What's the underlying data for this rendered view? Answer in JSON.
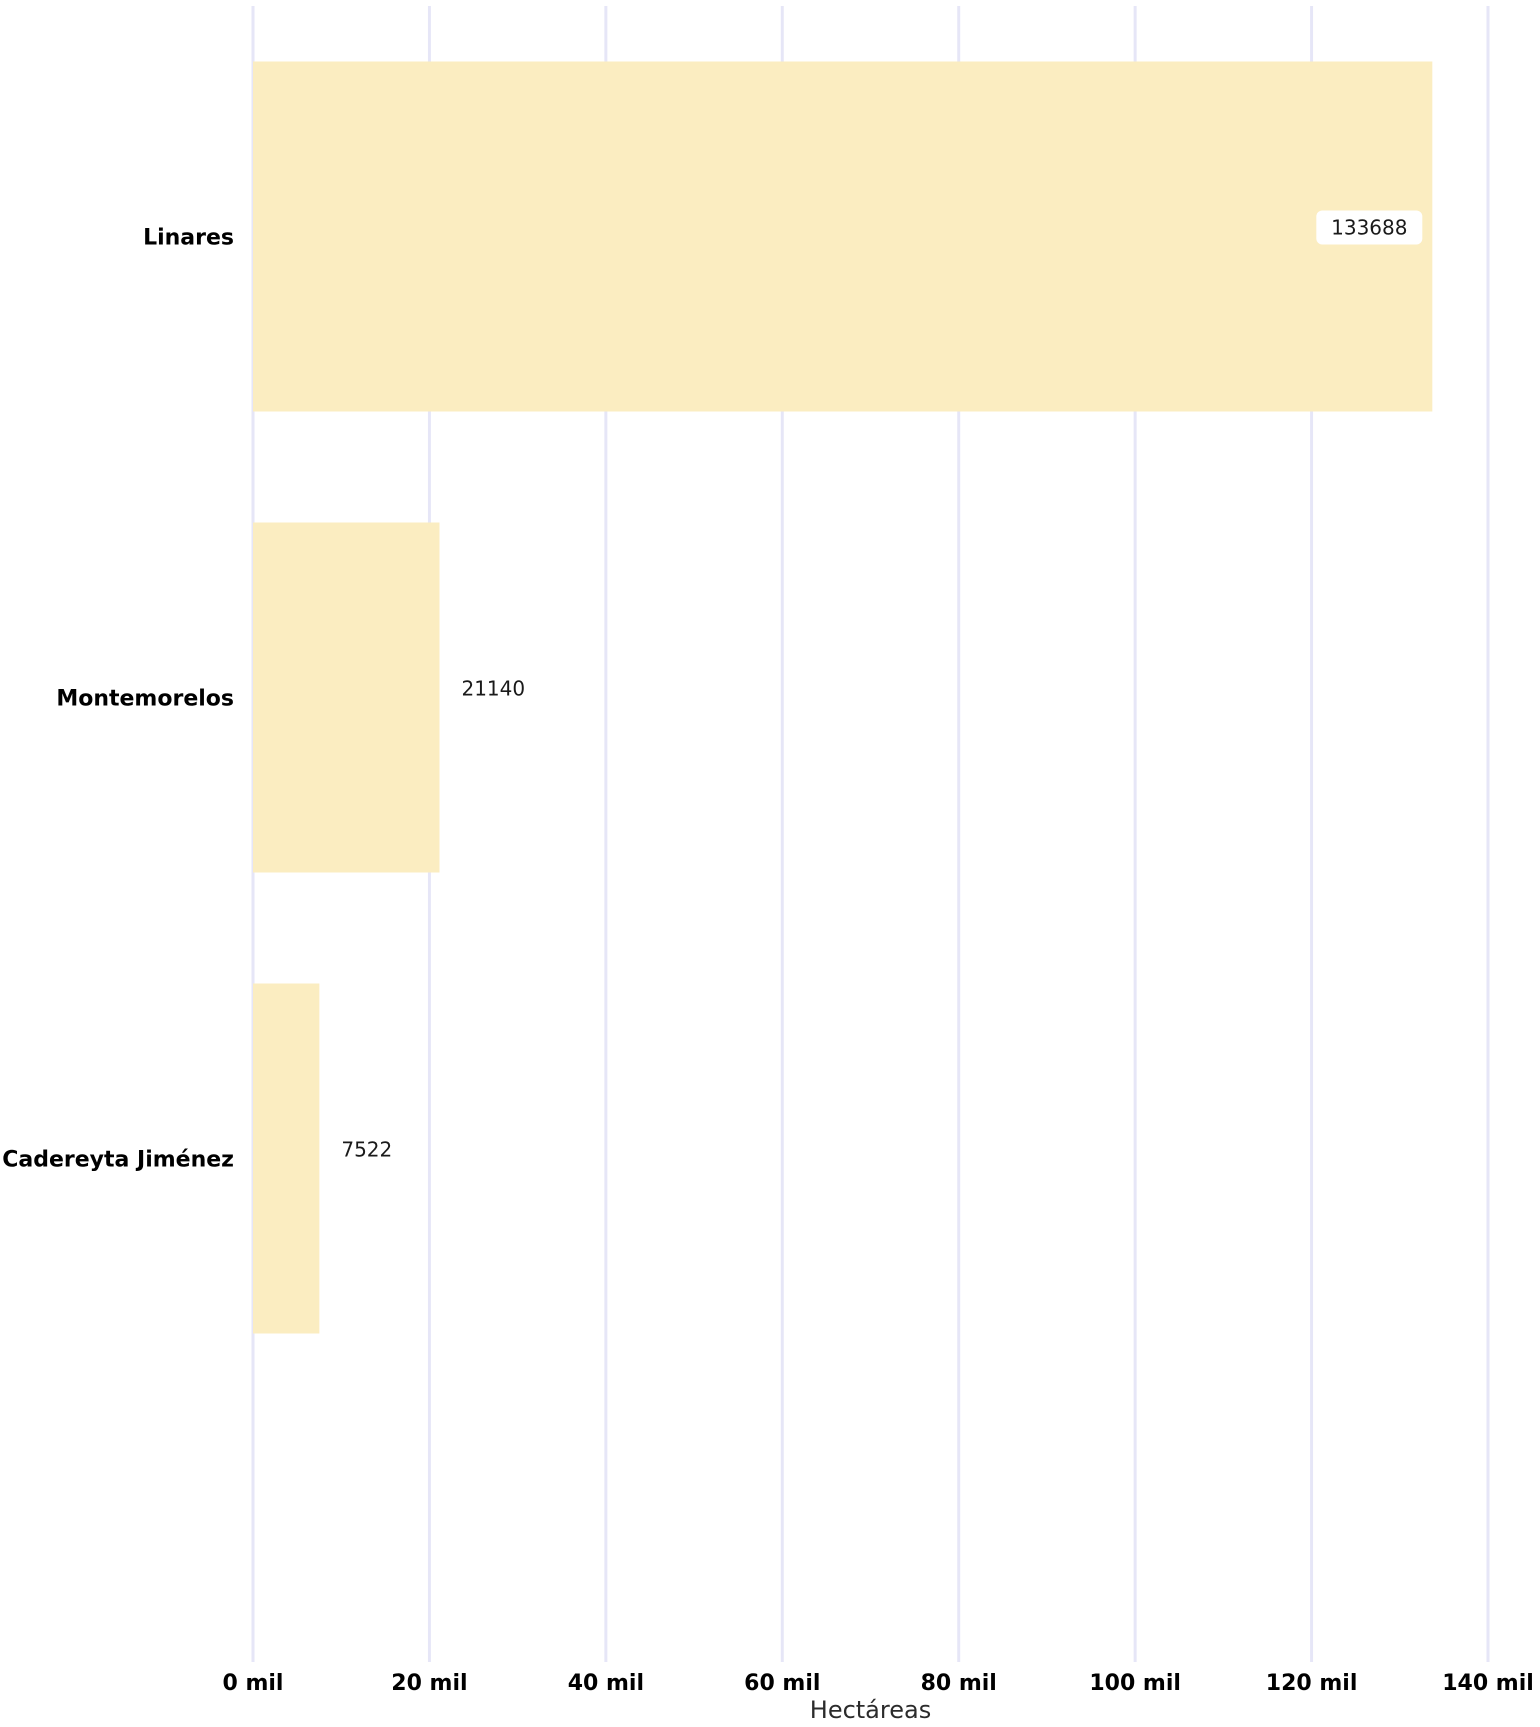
{
  "chart_data": {
    "type": "bar",
    "orientation": "horizontal",
    "categories": [
      "Linares",
      "Montemorelos",
      "Cadereyta Jiménez"
    ],
    "values": [
      133688,
      21140,
      7522
    ],
    "data_labels": [
      "133688",
      "21140",
      "7522"
    ],
    "xlabel": "Hectáreas",
    "ylabel": "",
    "xlim": [
      0,
      140000
    ],
    "ticks": [
      0,
      20000,
      40000,
      60000,
      80000,
      100000,
      120000,
      140000
    ],
    "tick_labels": [
      "0 mil",
      "20 mil",
      "40 mil",
      "60 mil",
      "80 mil",
      "100 mil",
      "120 mil",
      "140 mil"
    ],
    "grid": "vertical",
    "legend": "none"
  },
  "colors": {
    "bar": "#fbedc1",
    "grid": "#e6e6f7",
    "label_box": "#ffffff"
  }
}
